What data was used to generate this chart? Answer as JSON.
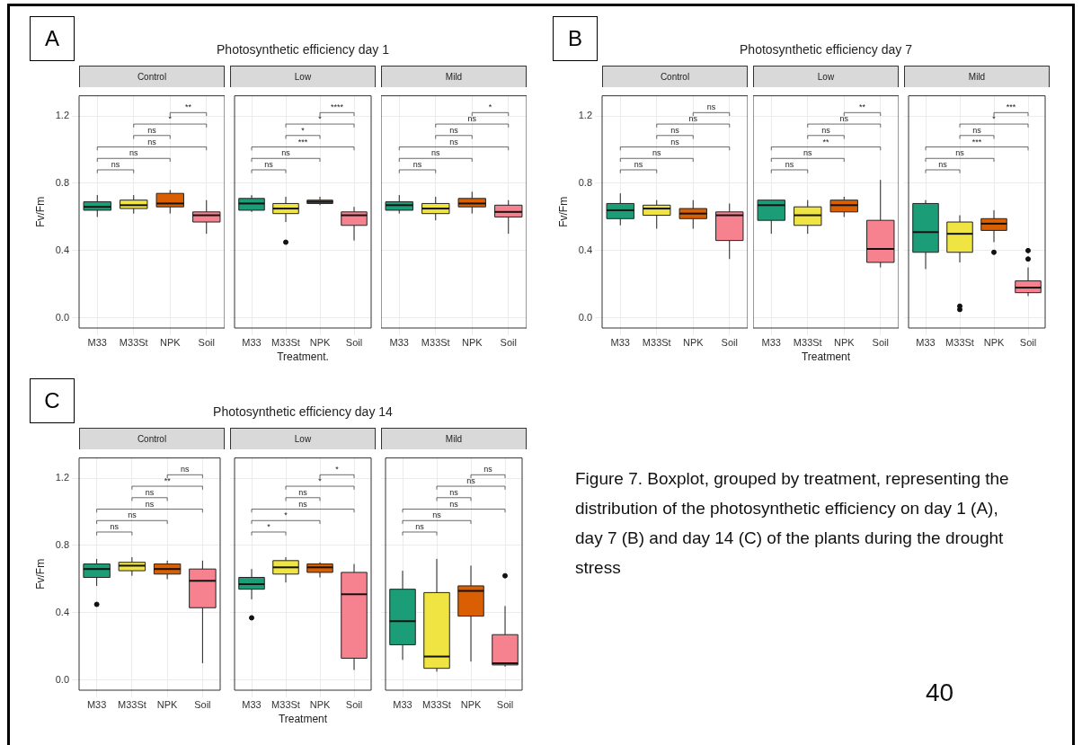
{
  "chart_data": [
    {
      "type": "box",
      "subtitle": "Control",
      "ylabel": "Fv/Fm",
      "categories": [
        "M33",
        "M33St",
        "NPK",
        "Soil"
      ],
      "colors": [
        "#1b9e77",
        "#f0e442",
        "#d95f02",
        "#f7828f"
      ],
      "ylim": [
        -0.06,
        1.32
      ],
      "yticks": [
        {
          "value": 0,
          "label": "0.0"
        },
        {
          "value": 0.4,
          "label": "0.4"
        },
        {
          "value": 0.8,
          "label": "0.8"
        },
        {
          "value": 1.2,
          "label": "1.2"
        }
      ],
      "grid": true,
      "annotations": [
        "A",
        "ns",
        "ns",
        "ns",
        "ns",
        "*",
        "**"
      ],
      "boxes": [
        {
          "low": 0.6,
          "q1": 0.64,
          "median": 0.66,
          "q3": 0.69,
          "high": 0.73
        },
        {
          "low": 0.62,
          "q1": 0.65,
          "median": 0.67,
          "q3": 0.7,
          "high": 0.73
        },
        {
          "low": 0.62,
          "q1": 0.66,
          "median": 0.68,
          "q3": 0.74,
          "high": 0.76
        },
        {
          "low": 0.5,
          "q1": 0.57,
          "median": 0.61,
          "q3": 0.63,
          "high": 0.7
        }
      ]
    },
    {
      "type": "box",
      "title": "Photosynthetic efficiency day 1",
      "subtitle": "Low",
      "xlabel": "Treatment.",
      "categories": [
        "M33",
        "M33St",
        "NPK",
        "Soil"
      ],
      "colors": [
        "#1b9e77",
        "#f0e442",
        "#d95f02",
        "#f7828f"
      ],
      "ylim": [
        -0.06,
        1.32
      ],
      "yticks": [
        0,
        0.4,
        0.8,
        1.2
      ],
      "grid": true,
      "tick_labels": "x",
      "annotations": [
        "ns",
        "ns",
        "***",
        "*",
        "*",
        "****"
      ],
      "boxes": [
        {
          "low": 0.63,
          "q1": 0.64,
          "median": 0.68,
          "q3": 0.71,
          "high": 0.73
        },
        {
          "low": 0.57,
          "q1": 0.62,
          "median": 0.65,
          "q3": 0.68,
          "high": 0.72,
          "outliers": [
            0.45
          ]
        },
        {
          "low": 0.67,
          "q1": 0.68,
          "median": 0.69,
          "q3": 0.7,
          "high": 0.72
        },
        {
          "low": 0.46,
          "q1": 0.55,
          "median": 0.61,
          "q3": 0.63,
          "high": 0.66
        }
      ]
    },
    {
      "type": "box",
      "subtitle": "Mild",
      "categories": [
        "M33",
        "M33St",
        "NPK",
        "Soil"
      ],
      "colors": [
        "#1b9e77",
        "#f0e442",
        "#d95f02",
        "#f7828f"
      ],
      "ylim": [
        -0.06,
        1.32
      ],
      "yticks": [
        0,
        0.4,
        0.8,
        1.2
      ],
      "grid": true,
      "tick_labels": "x",
      "annotations": [
        "ns",
        "ns",
        "ns",
        "ns",
        "ns",
        "*"
      ],
      "boxes": [
        {
          "low": 0.62,
          "q1": 0.64,
          "median": 0.67,
          "q3": 0.69,
          "high": 0.73
        },
        {
          "low": 0.58,
          "q1": 0.62,
          "median": 0.65,
          "q3": 0.68,
          "high": 0.72
        },
        {
          "low": 0.62,
          "q1": 0.66,
          "median": 0.68,
          "q3": 0.71,
          "high": 0.75
        },
        {
          "low": 0.5,
          "q1": 0.6,
          "median": 0.63,
          "q3": 0.67,
          "high": 0.7
        }
      ]
    },
    {
      "type": "box",
      "subtitle": "Control",
      "ylabel": "Fv/Fm",
      "categories": [
        "M33",
        "M33St",
        "NPK",
        "Soil"
      ],
      "colors": [
        "#1b9e77",
        "#f0e442",
        "#d95f02",
        "#f7828f"
      ],
      "ylim": [
        -0.06,
        1.32
      ],
      "yticks": [
        {
          "value": 0,
          "label": "0.0"
        },
        {
          "value": 0.4,
          "label": "0.4"
        },
        {
          "value": 0.8,
          "label": "0.8"
        },
        {
          "value": 1.2,
          "label": "1.2"
        }
      ],
      "grid": true,
      "annotations": [
        "B",
        "ns",
        "ns",
        "ns",
        "ns",
        "ns",
        "ns"
      ],
      "boxes": [
        {
          "low": 0.55,
          "q1": 0.59,
          "median": 0.64,
          "q3": 0.68,
          "high": 0.74
        },
        {
          "low": 0.53,
          "q1": 0.61,
          "median": 0.65,
          "q3": 0.67,
          "high": 0.7
        },
        {
          "low": 0.53,
          "q1": 0.59,
          "median": 0.62,
          "q3": 0.65,
          "high": 0.7
        },
        {
          "low": 0.35,
          "q1": 0.46,
          "median": 0.61,
          "q3": 0.63,
          "high": 0.68
        }
      ]
    },
    {
      "type": "box",
      "title": "Photosynthetic efficiency day 7",
      "subtitle": "Low",
      "xlabel": "Treatment",
      "categories": [
        "M33",
        "M33St",
        "NPK",
        "Soil"
      ],
      "colors": [
        "#1b9e77",
        "#f0e442",
        "#d95f02",
        "#f7828f"
      ],
      "ylim": [
        -0.06,
        1.32
      ],
      "yticks": [
        0,
        0.4,
        0.8,
        1.2
      ],
      "grid": true,
      "tick_labels": "x",
      "annotations": [
        "ns",
        "ns",
        "**",
        "ns",
        "ns",
        "**"
      ],
      "boxes": [
        {
          "low": 0.5,
          "q1": 0.58,
          "median": 0.67,
          "q3": 0.7,
          "high": 0.7
        },
        {
          "low": 0.5,
          "q1": 0.55,
          "median": 0.61,
          "q3": 0.66,
          "high": 0.7
        },
        {
          "low": 0.6,
          "q1": 0.63,
          "median": 0.67,
          "q3": 0.7,
          "high": 0.72
        },
        {
          "low": 0.3,
          "q1": 0.33,
          "median": 0.41,
          "q3": 0.58,
          "high": 0.82
        }
      ]
    },
    {
      "type": "box",
      "subtitle": "Mild",
      "categories": [
        "M33",
        "M33St",
        "NPK",
        "Soil"
      ],
      "colors": [
        "#1b9e77",
        "#f0e442",
        "#d95f02",
        "#f7828f"
      ],
      "ylim": [
        -0.06,
        1.32
      ],
      "yticks": [
        0,
        0.4,
        0.8,
        1.2
      ],
      "grid": true,
      "tick_labels": "x",
      "annotations": [
        "ns",
        "ns",
        "***",
        "ns",
        "*",
        "***"
      ],
      "boxes": [
        {
          "low": 0.29,
          "q1": 0.39,
          "median": 0.51,
          "q3": 0.68,
          "high": 0.7
        },
        {
          "low": 0.33,
          "q1": 0.39,
          "median": 0.5,
          "q3": 0.57,
          "high": 0.61,
          "outliers": [
            0.05,
            0.07
          ]
        },
        {
          "low": 0.45,
          "q1": 0.52,
          "median": 0.56,
          "q3": 0.59,
          "high": 0.64,
          "outliers": [
            0.39
          ]
        },
        {
          "low": 0.13,
          "q1": 0.15,
          "median": 0.18,
          "q3": 0.22,
          "high": 0.3,
          "outliers": [
            0.35,
            0.4
          ]
        }
      ]
    },
    {
      "type": "box",
      "subtitle": "Control",
      "ylabel": "Fv/Fm",
      "categories": [
        "M33",
        "M33St",
        "NPK",
        "Soil"
      ],
      "colors": [
        "#1b9e77",
        "#f0e442",
        "#d95f02",
        "#f7828f"
      ],
      "ylim": [
        -0.06,
        1.32
      ],
      "yticks": [
        {
          "value": 0,
          "label": "0.0"
        },
        {
          "value": 0.4,
          "label": "0.4"
        },
        {
          "value": 0.8,
          "label": "0.8"
        },
        {
          "value": 1.2,
          "label": "1.2"
        }
      ],
      "grid": true,
      "annotations": [
        "C",
        "ns",
        "ns",
        "ns",
        "ns",
        "**",
        "ns"
      ],
      "boxes": [
        {
          "low": 0.56,
          "q1": 0.61,
          "median": 0.66,
          "q3": 0.69,
          "high": 0.72,
          "outliers": [
            0.45
          ]
        },
        {
          "low": 0.62,
          "q1": 0.65,
          "median": 0.68,
          "q3": 0.7,
          "high": 0.73
        },
        {
          "low": 0.6,
          "q1": 0.63,
          "median": 0.66,
          "q3": 0.69,
          "high": 0.71
        },
        {
          "low": 0.1,
          "q1": 0.43,
          "median": 0.59,
          "q3": 0.66,
          "high": 0.71
        }
      ]
    },
    {
      "type": "box",
      "title": "Photosynthetic efficiency day 14",
      "subtitle": "Low",
      "xlabel": "Treatment",
      "categories": [
        "M33",
        "M33St",
        "NPK",
        "Soil"
      ],
      "colors": [
        "#1b9e77",
        "#f0e442",
        "#d95f02",
        "#f7828f"
      ],
      "ylim": [
        -0.06,
        1.32
      ],
      "yticks": [
        0,
        0.4,
        0.8,
        1.2
      ],
      "grid": true,
      "tick_labels": "x",
      "annotations": [
        "*",
        "*",
        "ns",
        "ns",
        "*",
        "*"
      ],
      "boxes": [
        {
          "low": 0.48,
          "q1": 0.54,
          "median": 0.57,
          "q3": 0.61,
          "high": 0.66,
          "outliers": [
            0.37
          ]
        },
        {
          "low": 0.58,
          "q1": 0.63,
          "median": 0.67,
          "q3": 0.71,
          "high": 0.73
        },
        {
          "low": 0.61,
          "q1": 0.64,
          "median": 0.67,
          "q3": 0.69,
          "high": 0.7
        },
        {
          "low": 0.06,
          "q1": 0.13,
          "median": 0.51,
          "q3": 0.64,
          "high": 0.69
        }
      ]
    },
    {
      "type": "box",
      "subtitle": "Mild",
      "categories": [
        "M33",
        "M33St",
        "NPK",
        "Soil"
      ],
      "colors": [
        "#1b9e77",
        "#f0e442",
        "#d95f02",
        "#f7828f"
      ],
      "ylim": [
        -0.06,
        1.32
      ],
      "yticks": [
        0,
        0.4,
        0.8,
        1.2
      ],
      "grid": true,
      "tick_labels": "x",
      "annotations": [
        "ns",
        "ns",
        "ns",
        "ns",
        "ns",
        "ns"
      ],
      "boxes": [
        {
          "low": 0.12,
          "q1": 0.21,
          "median": 0.35,
          "q3": 0.54,
          "high": 0.65
        },
        {
          "low": 0.05,
          "q1": 0.07,
          "median": 0.14,
          "q3": 0.52,
          "high": 0.72
        },
        {
          "low": 0.11,
          "q1": 0.38,
          "median": 0.53,
          "q3": 0.56,
          "high": 0.68
        },
        {
          "low": 0.08,
          "q1": 0.09,
          "median": 0.1,
          "q3": 0.27,
          "high": 0.44,
          "outliers": [
            0.62
          ]
        }
      ]
    },
    {
      "type": "other",
      "annotations": [
        "Figure 7. Boxplot, grouped by treatment, representing the distribution of the photosynthetic efficiency on day 1 (A), day 7 (B) and day 14 (C) of the plants during the drought stress",
        "40"
      ]
    }
  ]
}
